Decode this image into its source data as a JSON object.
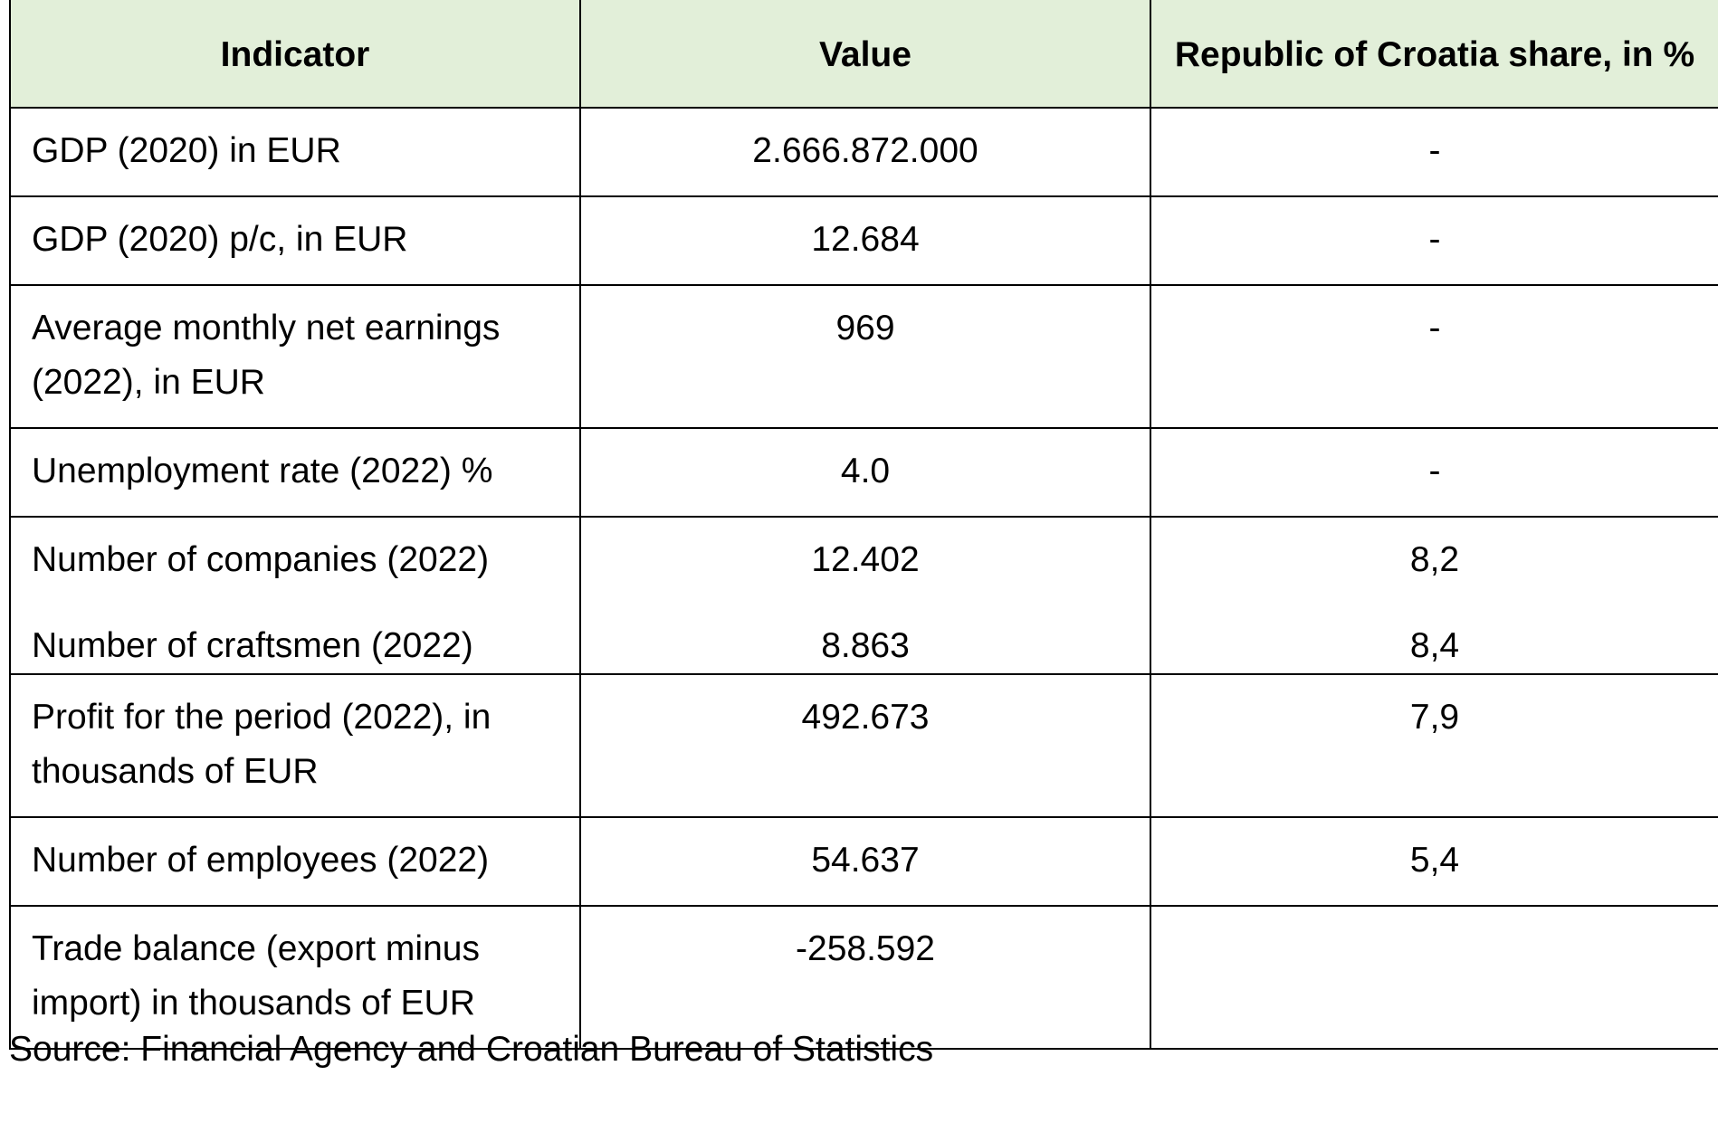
{
  "table": {
    "headers": {
      "indicator": "Indicator",
      "value": "Value",
      "share": "Republic of Croatia share, in %"
    },
    "rows": [
      {
        "indicator": "GDP (2020) in EUR",
        "value": "2.666.872.000",
        "share": "-"
      },
      {
        "indicator": "GDP (2020) p/c, in EUR",
        "value": "12.684",
        "share": "-"
      },
      {
        "indicator": "Average monthly net earnings (2022), in EUR",
        "value": "969",
        "share": "-"
      },
      {
        "indicator": "Unemployment rate (2022) %",
        "value": "4.0",
        "share": "-"
      },
      {
        "indicator": "Number of companies (2022)",
        "value": "12.402",
        "share": "8,2",
        "indicator_2": "Number of craftsmen (2022)",
        "value_2": "8.863",
        "share_2": "8,4"
      },
      {
        "indicator": "Profit for the period (2022), in thousands of EUR",
        "value": "492.673",
        "share": "7,9"
      },
      {
        "indicator": "Number of employees (2022)",
        "value": "54.637",
        "share": "5,4"
      },
      {
        "indicator": "Trade balance (export minus import) in thousands of EUR",
        "value": "-258.592",
        "share": ""
      }
    ]
  },
  "source": "Source: Financial Agency and Croatian Bureau of Statistics",
  "colors": {
    "header_background": "#e2efd9",
    "border": "#000000",
    "text": "#000000"
  }
}
